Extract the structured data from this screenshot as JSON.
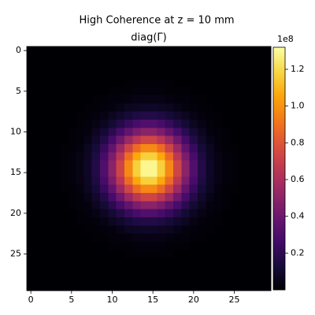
{
  "chart_data": {
    "type": "heatmap",
    "title": "High Coherence at z = 10 mm",
    "subtitle": "diag(Γ)",
    "colormap": "inferno",
    "xlim": [
      -0.5,
      29.5
    ],
    "ylim": [
      29.5,
      -0.5
    ],
    "xticks": [
      0,
      5,
      10,
      15,
      20,
      25
    ],
    "yticks": [
      0,
      5,
      10,
      15,
      20,
      25
    ],
    "zlim": [
      0,
      1.32
    ],
    "zticks": [
      0.2,
      0.4,
      0.6,
      0.8,
      {
        "value": 1,
        "label": "1.0"
      },
      1.2
    ],
    "colorbar_offset_label": "1e8",
    "z": [
      [
        0,
        0,
        0,
        0,
        0,
        0,
        0,
        0,
        0,
        0,
        0,
        0,
        0,
        0,
        0,
        0,
        0,
        0,
        0,
        0,
        0,
        0,
        0,
        0,
        0,
        0,
        0,
        0,
        0,
        0
      ],
      [
        0,
        0,
        0,
        0,
        0,
        0,
        0,
        0,
        0,
        0,
        0,
        0,
        0,
        0,
        0,
        0,
        0,
        0,
        0,
        0,
        0,
        0,
        0,
        0,
        0,
        0,
        0,
        0,
        0,
        0
      ],
      [
        0,
        0,
        0,
        0,
        0,
        0,
        0,
        0,
        0,
        0,
        0,
        0,
        0,
        0,
        0,
        0,
        0,
        0,
        0,
        0,
        0,
        0,
        0,
        0,
        0,
        0,
        0,
        0,
        0,
        0
      ],
      [
        0,
        0,
        0,
        0,
        0,
        0,
        0,
        0,
        0,
        0,
        0,
        0,
        0,
        0,
        0,
        0,
        0,
        0,
        0,
        0,
        0,
        0,
        0,
        0,
        0,
        0,
        0,
        0,
        0,
        0
      ],
      [
        0,
        0,
        0,
        0,
        0,
        0,
        0,
        0,
        0,
        0,
        0,
        0,
        0.01,
        0.01,
        0.01,
        0.01,
        0.01,
        0.01,
        0,
        0,
        0,
        0,
        0,
        0,
        0,
        0,
        0,
        0,
        0,
        0
      ],
      [
        0,
        0,
        0,
        0,
        0,
        0,
        0,
        0,
        0,
        0,
        0.01,
        0.01,
        0.01,
        0.02,
        0.02,
        0.02,
        0.02,
        0.01,
        0.01,
        0.01,
        0,
        0,
        0,
        0,
        0,
        0,
        0,
        0,
        0,
        0
      ],
      [
        0,
        0,
        0,
        0,
        0,
        0,
        0,
        0,
        0.01,
        0.01,
        0.02,
        0.02,
        0.03,
        0.04,
        0.04,
        0.04,
        0.04,
        0.03,
        0.02,
        0.02,
        0.01,
        0.01,
        0,
        0,
        0,
        0,
        0,
        0,
        0,
        0
      ],
      [
        0,
        0,
        0,
        0,
        0,
        0,
        0,
        0.01,
        0.01,
        0.02,
        0.03,
        0.05,
        0.07,
        0.08,
        0.09,
        0.09,
        0.08,
        0.07,
        0.05,
        0.03,
        0.02,
        0.01,
        0.01,
        0,
        0,
        0,
        0,
        0,
        0,
        0
      ],
      [
        0,
        0,
        0,
        0,
        0,
        0,
        0.01,
        0.01,
        0.02,
        0.04,
        0.07,
        0.1,
        0.13,
        0.16,
        0.17,
        0.17,
        0.16,
        0.13,
        0.1,
        0.07,
        0.04,
        0.02,
        0.01,
        0.01,
        0,
        0,
        0,
        0,
        0,
        0
      ],
      [
        0,
        0,
        0,
        0,
        0,
        0,
        0.01,
        0.02,
        0.04,
        0.07,
        0.12,
        0.17,
        0.23,
        0.28,
        0.31,
        0.31,
        0.28,
        0.23,
        0.17,
        0.12,
        0.07,
        0.04,
        0.02,
        0.01,
        0,
        0,
        0,
        0,
        0,
        0
      ],
      [
        0,
        0,
        0,
        0,
        0,
        0.01,
        0.02,
        0.03,
        0.07,
        0.12,
        0.19,
        0.28,
        0.37,
        0.45,
        0.5,
        0.5,
        0.45,
        0.37,
        0.28,
        0.19,
        0.12,
        0.07,
        0.03,
        0.02,
        0.01,
        0,
        0,
        0,
        0,
        0
      ],
      [
        0,
        0,
        0,
        0,
        0,
        0.01,
        0.02,
        0.05,
        0.1,
        0.17,
        0.28,
        0.41,
        0.55,
        0.66,
        0.73,
        0.73,
        0.66,
        0.55,
        0.41,
        0.28,
        0.17,
        0.1,
        0.05,
        0.02,
        0.01,
        0,
        0,
        0,
        0,
        0
      ],
      [
        0,
        0,
        0,
        0,
        0.01,
        0.01,
        0.03,
        0.07,
        0.13,
        0.23,
        0.37,
        0.55,
        0.73,
        0.88,
        0.97,
        0.97,
        0.88,
        0.73,
        0.55,
        0.37,
        0.23,
        0.13,
        0.07,
        0.03,
        0.01,
        0.01,
        0,
        0,
        0,
        0
      ],
      [
        0,
        0,
        0,
        0,
        0.01,
        0.02,
        0.04,
        0.08,
        0.16,
        0.28,
        0.45,
        0.66,
        0.88,
        1.06,
        1.17,
        1.17,
        1.06,
        0.88,
        0.66,
        0.45,
        0.28,
        0.16,
        0.08,
        0.04,
        0.02,
        0.01,
        0,
        0,
        0,
        0
      ],
      [
        0,
        0,
        0,
        0,
        0.01,
        0.02,
        0.04,
        0.09,
        0.17,
        0.31,
        0.5,
        0.73,
        0.97,
        1.17,
        1.29,
        1.29,
        1.17,
        0.97,
        0.73,
        0.5,
        0.31,
        0.17,
        0.09,
        0.04,
        0.02,
        0.01,
        0,
        0,
        0,
        0
      ],
      [
        0,
        0,
        0,
        0,
        0.01,
        0.02,
        0.04,
        0.09,
        0.17,
        0.31,
        0.5,
        0.73,
        0.97,
        1.17,
        1.29,
        1.29,
        1.17,
        0.97,
        0.73,
        0.5,
        0.31,
        0.17,
        0.09,
        0.04,
        0.02,
        0.01,
        0,
        0,
        0,
        0
      ],
      [
        0,
        0,
        0,
        0,
        0.01,
        0.02,
        0.04,
        0.08,
        0.16,
        0.28,
        0.45,
        0.66,
        0.88,
        1.06,
        1.17,
        1.17,
        1.06,
        0.88,
        0.66,
        0.45,
        0.28,
        0.16,
        0.08,
        0.04,
        0.02,
        0.01,
        0,
        0,
        0,
        0
      ],
      [
        0,
        0,
        0,
        0,
        0.01,
        0.01,
        0.03,
        0.07,
        0.13,
        0.23,
        0.37,
        0.55,
        0.73,
        0.88,
        0.97,
        0.97,
        0.88,
        0.73,
        0.55,
        0.37,
        0.23,
        0.13,
        0.07,
        0.03,
        0.01,
        0.01,
        0,
        0,
        0,
        0
      ],
      [
        0,
        0,
        0,
        0,
        0,
        0.01,
        0.02,
        0.05,
        0.1,
        0.17,
        0.28,
        0.41,
        0.55,
        0.66,
        0.73,
        0.73,
        0.66,
        0.55,
        0.41,
        0.28,
        0.17,
        0.1,
        0.05,
        0.02,
        0.01,
        0,
        0,
        0,
        0,
        0
      ],
      [
        0,
        0,
        0,
        0,
        0,
        0.01,
        0.02,
        0.03,
        0.07,
        0.12,
        0.19,
        0.28,
        0.37,
        0.45,
        0.5,
        0.5,
        0.45,
        0.37,
        0.28,
        0.19,
        0.12,
        0.07,
        0.03,
        0.02,
        0.01,
        0,
        0,
        0,
        0,
        0
      ],
      [
        0,
        0,
        0,
        0,
        0,
        0,
        0.01,
        0.02,
        0.04,
        0.07,
        0.12,
        0.17,
        0.23,
        0.28,
        0.31,
        0.31,
        0.28,
        0.23,
        0.17,
        0.12,
        0.07,
        0.04,
        0.02,
        0.01,
        0,
        0,
        0,
        0,
        0,
        0
      ],
      [
        0,
        0,
        0,
        0,
        0,
        0,
        0.01,
        0.01,
        0.02,
        0.04,
        0.07,
        0.1,
        0.13,
        0.16,
        0.17,
        0.17,
        0.16,
        0.13,
        0.1,
        0.07,
        0.04,
        0.02,
        0.01,
        0.01,
        0,
        0,
        0,
        0,
        0,
        0
      ],
      [
        0,
        0,
        0,
        0,
        0,
        0,
        0,
        0.01,
        0.01,
        0.02,
        0.03,
        0.05,
        0.07,
        0.08,
        0.09,
        0.09,
        0.08,
        0.07,
        0.05,
        0.03,
        0.02,
        0.01,
        0.01,
        0,
        0,
        0,
        0,
        0,
        0,
        0
      ],
      [
        0,
        0,
        0,
        0,
        0,
        0,
        0,
        0,
        0.01,
        0.01,
        0.02,
        0.02,
        0.03,
        0.04,
        0.04,
        0.04,
        0.04,
        0.03,
        0.02,
        0.02,
        0.01,
        0.01,
        0,
        0,
        0,
        0,
        0,
        0,
        0,
        0
      ],
      [
        0,
        0,
        0,
        0,
        0,
        0,
        0,
        0,
        0,
        0,
        0.01,
        0.01,
        0.01,
        0.02,
        0.02,
        0.02,
        0.02,
        0.01,
        0.01,
        0.01,
        0,
        0,
        0,
        0,
        0,
        0,
        0,
        0,
        0,
        0
      ],
      [
        0,
        0,
        0,
        0,
        0,
        0,
        0,
        0,
        0,
        0,
        0,
        0,
        0.01,
        0.01,
        0.01,
        0.01,
        0.01,
        0.01,
        0,
        0,
        0,
        0,
        0,
        0,
        0,
        0,
        0,
        0,
        0,
        0
      ],
      [
        0,
        0,
        0,
        0,
        0,
        0,
        0,
        0,
        0,
        0,
        0,
        0,
        0,
        0,
        0,
        0,
        0,
        0,
        0,
        0,
        0,
        0,
        0,
        0,
        0,
        0,
        0,
        0,
        0,
        0
      ],
      [
        0,
        0,
        0,
        0,
        0,
        0,
        0,
        0,
        0,
        0,
        0,
        0,
        0,
        0,
        0,
        0,
        0,
        0,
        0,
        0,
        0,
        0,
        0,
        0,
        0,
        0,
        0,
        0,
        0,
        0
      ],
      [
        0,
        0,
        0,
        0,
        0,
        0,
        0,
        0,
        0,
        0,
        0,
        0,
        0,
        0,
        0,
        0,
        0,
        0,
        0,
        0,
        0,
        0,
        0,
        0,
        0,
        0,
        0,
        0,
        0,
        0
      ],
      [
        0,
        0,
        0,
        0,
        0,
        0,
        0,
        0,
        0,
        0,
        0,
        0,
        0,
        0,
        0,
        0,
        0,
        0,
        0,
        0,
        0,
        0,
        0,
        0,
        0,
        0,
        0,
        0,
        0,
        0
      ]
    ]
  }
}
